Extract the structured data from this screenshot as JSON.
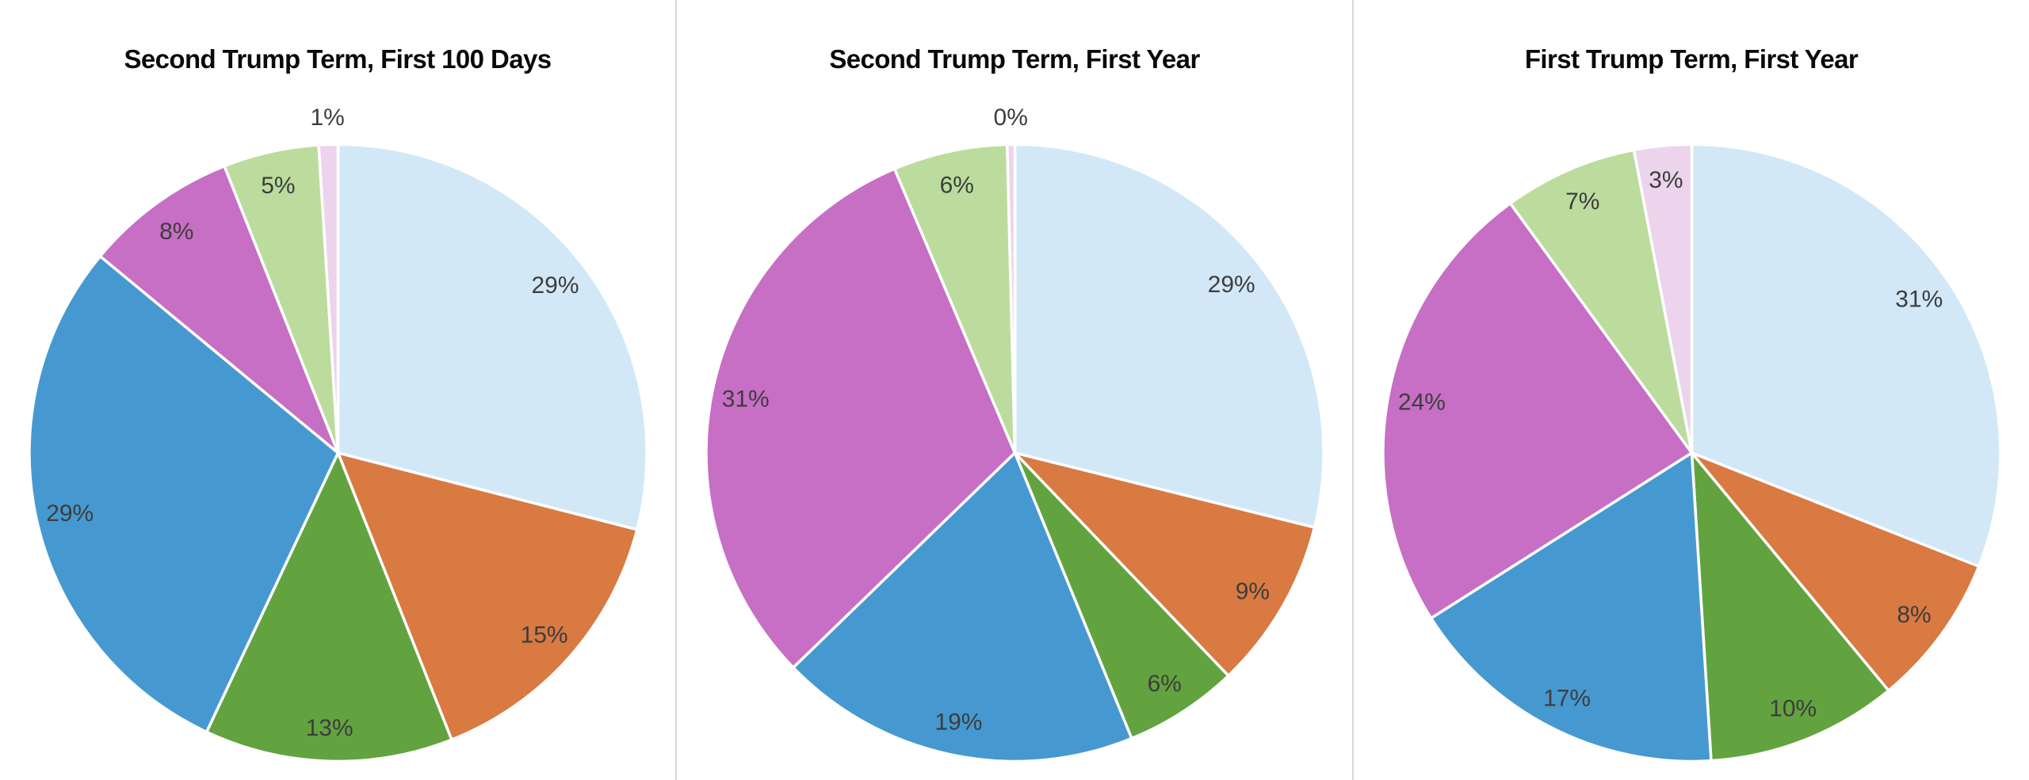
{
  "page": {
    "background": "#ffffff",
    "divider_color": "#d8d8d8",
    "title_color": "#0a0a0a",
    "label_color": "#3d3d3d"
  },
  "palette": {
    "pale_blue": "#d2e8f7",
    "orange": "#d87a42",
    "dark_green": "#62a340",
    "blue": "#4699d0",
    "magenta": "#c76fc4",
    "light_green": "#bcdc9e",
    "pale_pink": "#ecd4ec"
  },
  "chart_data": [
    {
      "type": "pie",
      "title": "Second Trump Term, First 100 Days",
      "start_angle_deg": 0,
      "direction": "clockwise",
      "legend": "none",
      "labels_position": "inside-near-edge, outside for slices under 2%",
      "slices": [
        {
          "label": "29%",
          "value": 29,
          "color_key": "pale_blue"
        },
        {
          "label": "15%",
          "value": 15,
          "color_key": "orange"
        },
        {
          "label": "13%",
          "value": 13,
          "color_key": "dark_green"
        },
        {
          "label": "29%",
          "value": 29,
          "color_key": "blue"
        },
        {
          "label": "8%",
          "value": 8,
          "color_key": "magenta"
        },
        {
          "label": "5%",
          "value": 5,
          "color_key": "light_green"
        },
        {
          "label": "1%",
          "value": 1,
          "color_key": "pale_pink"
        }
      ]
    },
    {
      "type": "pie",
      "title": "Second Trump Term, First Year",
      "start_angle_deg": 0,
      "direction": "clockwise",
      "legend": "none",
      "labels_position": "inside-near-edge, outside for slices under 2%",
      "slices": [
        {
          "label": "29%",
          "value": 29,
          "color_key": "pale_blue"
        },
        {
          "label": "9%",
          "value": 9,
          "color_key": "orange"
        },
        {
          "label": "6%",
          "value": 6,
          "color_key": "dark_green"
        },
        {
          "label": "19%",
          "value": 19,
          "color_key": "blue"
        },
        {
          "label": "31%",
          "value": 31,
          "color_key": "magenta"
        },
        {
          "label": "6%",
          "value": 6,
          "color_key": "light_green"
        },
        {
          "label": "0%",
          "value": 0,
          "color_key": "pale_pink"
        }
      ]
    },
    {
      "type": "pie",
      "title": "First Trump Term, First Year",
      "start_angle_deg": 0,
      "direction": "clockwise",
      "legend": "none",
      "labels_position": "inside-near-edge, outside for slices under 2%",
      "slices": [
        {
          "label": "31%",
          "value": 31,
          "color_key": "pale_blue"
        },
        {
          "label": "8%",
          "value": 8,
          "color_key": "orange"
        },
        {
          "label": "10%",
          "value": 10,
          "color_key": "dark_green"
        },
        {
          "label": "17%",
          "value": 17,
          "color_key": "blue"
        },
        {
          "label": "24%",
          "value": 24,
          "color_key": "magenta"
        },
        {
          "label": "7%",
          "value": 7,
          "color_key": "light_green"
        },
        {
          "label": "3%",
          "value": 3,
          "color_key": "pale_pink"
        }
      ]
    }
  ]
}
